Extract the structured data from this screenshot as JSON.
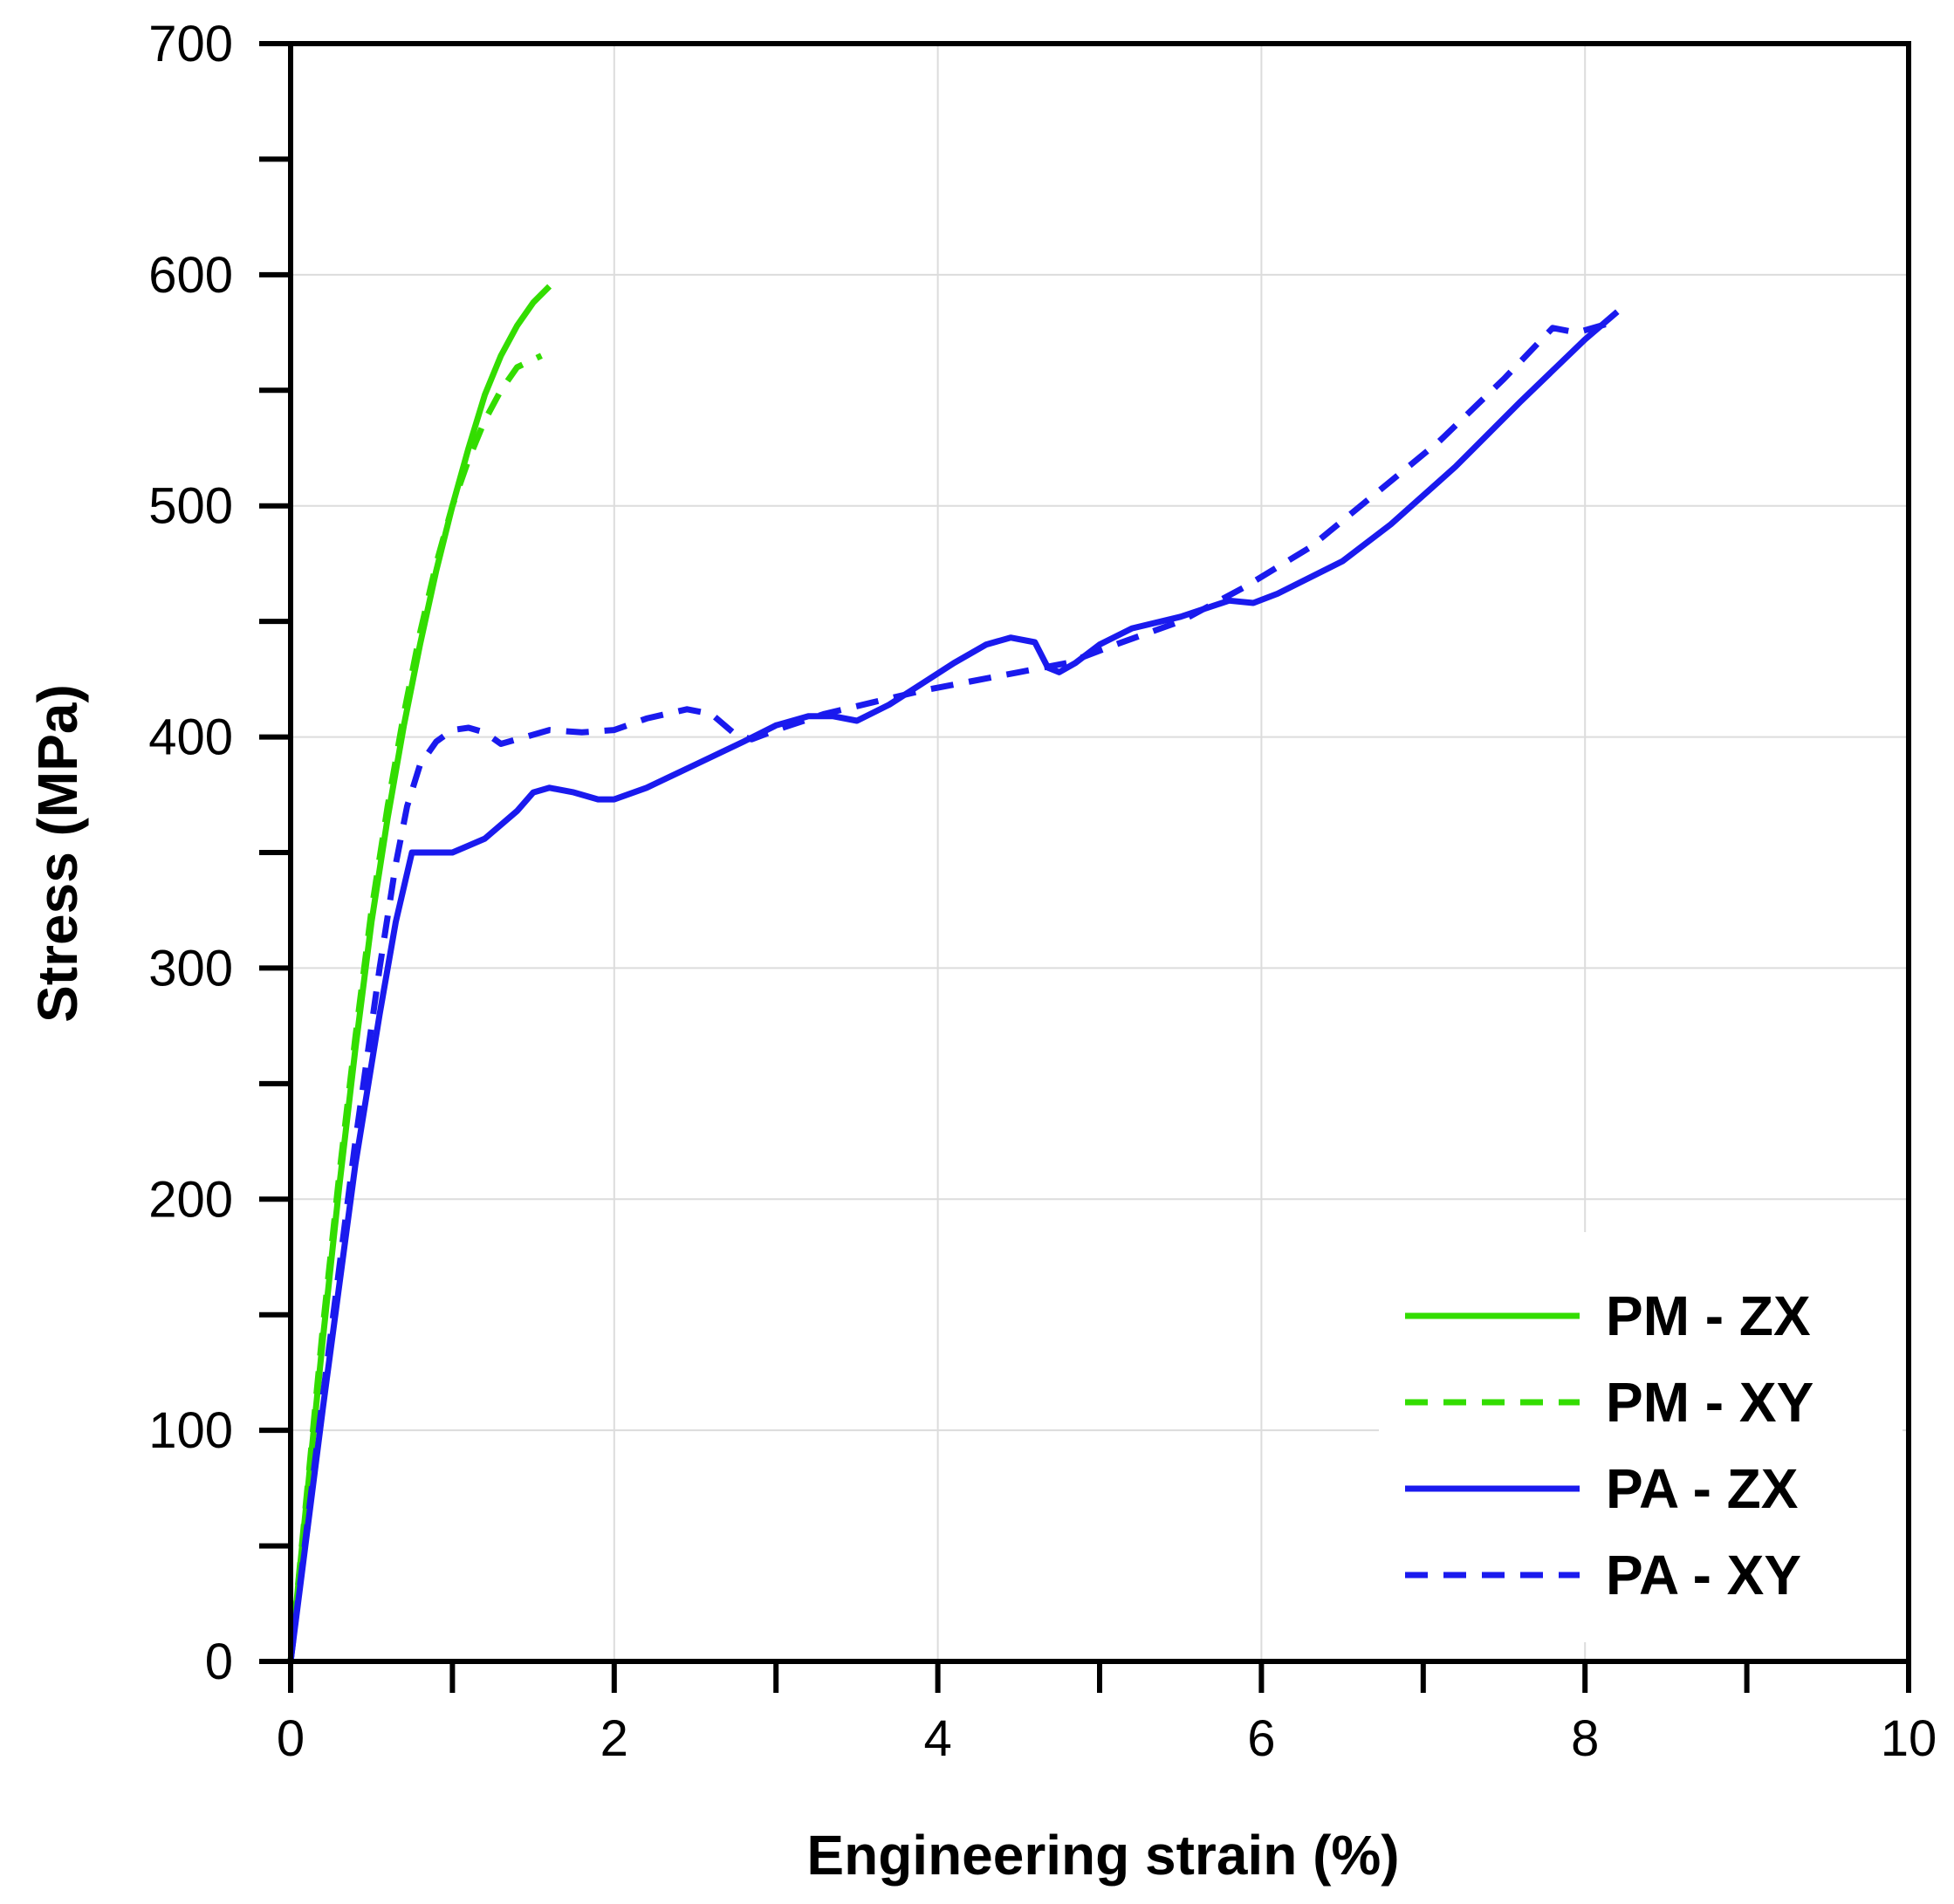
{
  "chart_data": {
    "type": "line",
    "xlabel": "Engineering strain (%)",
    "ylabel": "Stress (MPa)",
    "xlim": [
      0,
      10
    ],
    "ylim": [
      0,
      700
    ],
    "x_ticks": [
      0,
      2,
      4,
      6,
      8,
      10
    ],
    "x_tick_labels": [
      "0",
      "2",
      "4",
      "6",
      "8",
      "10"
    ],
    "x_minor_ticks": [
      1,
      3,
      5,
      7,
      9
    ],
    "y_ticks": [
      0,
      100,
      200,
      300,
      400,
      500,
      600,
      700
    ],
    "y_tick_labels": [
      "0",
      "100",
      "200",
      "300",
      "400",
      "500",
      "600",
      "700"
    ],
    "y_minor_ticks": [
      50,
      150,
      250,
      350,
      450,
      550,
      650
    ],
    "grid": true,
    "legend_position": "bottom-right",
    "series": [
      {
        "name": "PM - ZX",
        "color": "#33dd00",
        "dash": "solid",
        "points": [
          [
            0,
            0
          ],
          [
            0.1,
            70
          ],
          [
            0.2,
            140
          ],
          [
            0.3,
            205
          ],
          [
            0.4,
            265
          ],
          [
            0.5,
            320
          ],
          [
            0.6,
            365
          ],
          [
            0.7,
            405
          ],
          [
            0.8,
            440
          ],
          [
            0.9,
            472
          ],
          [
            1.0,
            500
          ],
          [
            1.1,
            525
          ],
          [
            1.2,
            548
          ],
          [
            1.3,
            565
          ],
          [
            1.4,
            578
          ],
          [
            1.5,
            588
          ],
          [
            1.6,
            595
          ]
        ]
      },
      {
        "name": "PM - XY",
        "color": "#33dd00",
        "dash": "dashed",
        "points": [
          [
            0,
            0
          ],
          [
            0.1,
            72
          ],
          [
            0.2,
            145
          ],
          [
            0.3,
            210
          ],
          [
            0.4,
            270
          ],
          [
            0.5,
            325
          ],
          [
            0.6,
            370
          ],
          [
            0.7,
            410
          ],
          [
            0.8,
            445
          ],
          [
            0.9,
            475
          ],
          [
            1.0,
            500
          ],
          [
            1.1,
            520
          ],
          [
            1.2,
            537
          ],
          [
            1.3,
            550
          ],
          [
            1.4,
            560
          ],
          [
            1.55,
            565
          ]
        ]
      },
      {
        "name": "PA - ZX",
        "color": "#1a1aee",
        "dash": "solid",
        "points": [
          [
            0,
            0
          ],
          [
            0.2,
            110
          ],
          [
            0.4,
            215
          ],
          [
            0.55,
            280
          ],
          [
            0.65,
            320
          ],
          [
            0.75,
            350
          ],
          [
            0.85,
            350
          ],
          [
            1.0,
            350
          ],
          [
            1.1,
            353
          ],
          [
            1.2,
            356
          ],
          [
            1.4,
            368
          ],
          [
            1.5,
            376
          ],
          [
            1.6,
            378
          ],
          [
            1.75,
            376
          ],
          [
            1.9,
            373
          ],
          [
            2.0,
            373
          ],
          [
            2.2,
            378
          ],
          [
            2.5,
            388
          ],
          [
            2.8,
            398
          ],
          [
            3.0,
            405
          ],
          [
            3.2,
            409
          ],
          [
            3.35,
            409
          ],
          [
            3.5,
            407
          ],
          [
            3.7,
            414
          ],
          [
            3.9,
            423
          ],
          [
            4.1,
            432
          ],
          [
            4.3,
            440
          ],
          [
            4.45,
            443
          ],
          [
            4.6,
            441
          ],
          [
            4.68,
            430
          ],
          [
            4.75,
            428
          ],
          [
            4.85,
            432
          ],
          [
            5.0,
            440
          ],
          [
            5.2,
            447
          ],
          [
            5.5,
            452
          ],
          [
            5.8,
            459
          ],
          [
            5.95,
            458
          ],
          [
            6.1,
            462
          ],
          [
            6.5,
            476
          ],
          [
            6.8,
            492
          ],
          [
            7.2,
            517
          ],
          [
            7.6,
            545
          ],
          [
            8.0,
            572
          ],
          [
            8.2,
            584
          ]
        ]
      },
      {
        "name": "PA - XY",
        "color": "#1a1aee",
        "dash": "dashed",
        "points": [
          [
            0,
            0
          ],
          [
            0.2,
            115
          ],
          [
            0.4,
            225
          ],
          [
            0.55,
            300
          ],
          [
            0.65,
            345
          ],
          [
            0.72,
            370
          ],
          [
            0.8,
            388
          ],
          [
            0.9,
            398
          ],
          [
            1.0,
            403
          ],
          [
            1.1,
            404
          ],
          [
            1.2,
            402
          ],
          [
            1.3,
            397
          ],
          [
            1.45,
            400
          ],
          [
            1.6,
            403
          ],
          [
            1.8,
            402
          ],
          [
            2.0,
            403
          ],
          [
            2.2,
            408
          ],
          [
            2.45,
            412
          ],
          [
            2.6,
            410
          ],
          [
            2.75,
            401
          ],
          [
            2.85,
            399
          ],
          [
            3.0,
            403
          ],
          [
            3.3,
            410
          ],
          [
            3.6,
            415
          ],
          [
            3.9,
            420
          ],
          [
            4.2,
            424
          ],
          [
            4.5,
            428
          ],
          [
            4.8,
            432
          ],
          [
            5.1,
            440
          ],
          [
            5.5,
            450
          ],
          [
            5.9,
            465
          ],
          [
            6.3,
            482
          ],
          [
            6.7,
            505
          ],
          [
            7.1,
            528
          ],
          [
            7.5,
            555
          ],
          [
            7.8,
            577
          ],
          [
            7.95,
            575
          ],
          [
            8.1,
            578
          ],
          [
            8.2,
            580
          ]
        ]
      }
    ]
  }
}
